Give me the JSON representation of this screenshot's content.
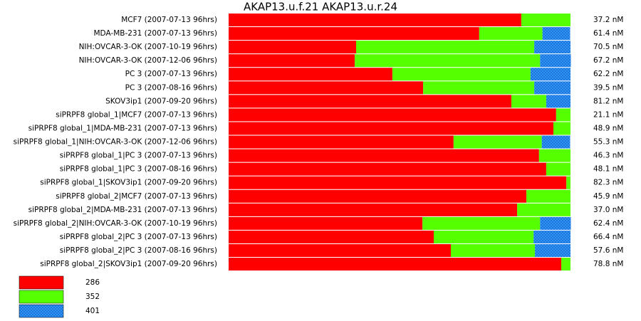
{
  "chart_data": {
    "type": "bar",
    "stacked": true,
    "orientation": "horizontal",
    "title": "AKAP13.u.f.21  AKAP13.u.r.24",
    "categories": [
      "MCF7 (2007-07-13 96hrs)",
      "MDA-MB-231 (2007-07-13 96hrs)",
      "NIH:OVCAR-3-OK (2007-10-19 96hrs)",
      "NIH:OVCAR-3-OK (2007-12-06 96hrs)",
      "PC 3 (2007-07-13 96hrs)",
      "PC 3 (2007-08-16 96hrs)",
      "SKOV3ip1 (2007-09-20 96hrs)",
      "siPRPF8 global_1|MCF7 (2007-07-13 96hrs)",
      "siPRPF8 global_1|MDA-MB-231 (2007-07-13 96hrs)",
      "siPRPF8 global_1|NIH:OVCAR-3-OK (2007-12-06 96hrs)",
      "siPRPF8 global_1|PC 3 (2007-07-13 96hrs)",
      "siPRPF8 global_1|PC 3 (2007-08-16 96hrs)",
      "siPRPF8 global_1|SKOV3ip1 (2007-09-20 96hrs)",
      "siPRPF8 global_2|MCF7 (2007-07-13 96hrs)",
      "siPRPF8 global_2|MDA-MB-231 (2007-07-13 96hrs)",
      "siPRPF8 global_2|NIH:OVCAR-3-OK (2007-10-19 96hrs)",
      "siPRPF8 global_2|PC 3 (2007-07-13 96hrs)",
      "siPRPF8 global_2|PC 3 (2007-08-16 96hrs)",
      "siPRPF8 global_2|SKOV3ip1 (2007-09-20 96hrs)"
    ],
    "series": [
      {
        "name": "286",
        "color": "#ff0000",
        "pattern": "solid",
        "values": [
          85.6,
          73.3,
          37.3,
          36.9,
          47.9,
          56.9,
          82.7,
          95.8,
          95.0,
          65.8,
          90.8,
          92.9,
          98.8,
          87.1,
          84.4,
          56.7,
          60.0,
          65.0,
          97.3
        ]
      },
      {
        "name": "352",
        "color": "#55ff00",
        "pattern": "solid",
        "values": [
          14.4,
          18.5,
          52.1,
          54.2,
          40.4,
          32.5,
          10.2,
          4.2,
          5.0,
          25.8,
          9.2,
          7.1,
          1.2,
          12.9,
          15.6,
          34.4,
          29.2,
          24.6,
          2.7
        ]
      },
      {
        "name": "401",
        "color": "#3399ff",
        "pattern": "hatched",
        "values": [
          0,
          8.1,
          10.6,
          9.0,
          11.7,
          10.6,
          7.1,
          0,
          0,
          8.3,
          0,
          0,
          0,
          0,
          0,
          9.0,
          10.8,
          10.4,
          0
        ]
      }
    ],
    "xlim": [
      0,
      100
    ],
    "annotations": [
      "37.2 nM",
      "61.4 nM",
      "70.5 nM",
      "67.2 nM",
      "62.2 nM",
      "39.5 nM",
      "81.2 nM",
      "21.1 nM",
      "48.9 nM",
      "55.3 nM",
      "46.3 nM",
      "48.1 nM",
      "82.3 nM",
      "45.9 nM",
      "37.0 nM",
      "62.4 nM",
      "66.4 nM",
      "57.6 nM",
      "78.8 nM"
    ]
  }
}
